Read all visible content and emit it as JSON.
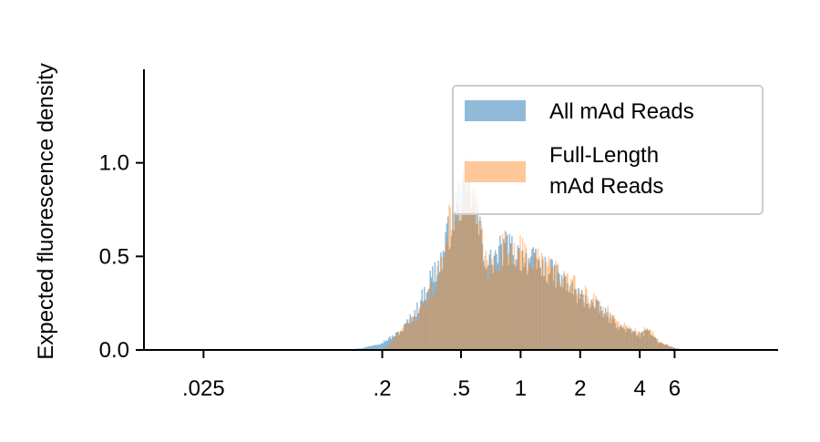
{
  "chart_data": {
    "type": "histogram",
    "title": "",
    "xlabel": "",
    "ylabel": "Expected fluorescence density",
    "x_scale": "log",
    "xlim": [
      0.0125,
      20
    ],
    "ylim": [
      0,
      1.5
    ],
    "x_ticks": [
      {
        "value": 0.025,
        "label": ".025"
      },
      {
        "value": 0.2,
        "label": ".2"
      },
      {
        "value": 0.5,
        "label": ".5"
      },
      {
        "value": 1,
        "label": "1"
      },
      {
        "value": 2,
        "label": "2"
      },
      {
        "value": 4,
        "label": "4"
      },
      {
        "value": 6,
        "label": "6"
      }
    ],
    "y_ticks": [
      {
        "value": 0.0,
        "label": "0.0"
      },
      {
        "value": 0.5,
        "label": "0.5"
      },
      {
        "value": 1.0,
        "label": "1.0"
      }
    ],
    "grid": false,
    "legend_position": "top-right",
    "series": [
      {
        "name": "All mAd Reads",
        "color": "#1f77b4",
        "opacity": 0.5,
        "profile": [
          [
            0.13,
            0.0
          ],
          [
            0.16,
            0.01
          ],
          [
            0.2,
            0.04
          ],
          [
            0.25,
            0.1
          ],
          [
            0.3,
            0.22
          ],
          [
            0.35,
            0.38
          ],
          [
            0.4,
            0.48
          ],
          [
            0.45,
            0.7
          ],
          [
            0.5,
            0.82
          ],
          [
            0.55,
            0.88
          ],
          [
            0.6,
            0.7
          ],
          [
            0.68,
            0.45
          ],
          [
            0.75,
            0.5
          ],
          [
            0.85,
            0.55
          ],
          [
            1.0,
            0.5
          ],
          [
            1.2,
            0.46
          ],
          [
            1.5,
            0.4
          ],
          [
            1.9,
            0.3
          ],
          [
            2.5,
            0.22
          ],
          [
            3.2,
            0.12
          ],
          [
            4.0,
            0.08
          ],
          [
            4.5,
            0.1
          ],
          [
            5.0,
            0.04
          ],
          [
            6.0,
            0.01
          ],
          [
            7.0,
            0.0
          ]
        ]
      },
      {
        "name": "Full-Length mAd Reads",
        "color": "#ff7f0e",
        "opacity": 0.4,
        "profile": [
          [
            0.2,
            0.0
          ],
          [
            0.22,
            0.03
          ],
          [
            0.25,
            0.12
          ],
          [
            0.3,
            0.18
          ],
          [
            0.35,
            0.3
          ],
          [
            0.4,
            0.45
          ],
          [
            0.45,
            0.75
          ],
          [
            0.5,
            0.86
          ],
          [
            0.55,
            0.9
          ],
          [
            0.6,
            0.72
          ],
          [
            0.68,
            0.42
          ],
          [
            0.75,
            0.48
          ],
          [
            0.85,
            0.56
          ],
          [
            1.0,
            0.52
          ],
          [
            1.2,
            0.48
          ],
          [
            1.5,
            0.42
          ],
          [
            1.9,
            0.33
          ],
          [
            2.5,
            0.24
          ],
          [
            3.2,
            0.14
          ],
          [
            4.0,
            0.09
          ],
          [
            4.5,
            0.12
          ],
          [
            5.0,
            0.05
          ],
          [
            6.0,
            0.01
          ],
          [
            6.5,
            0.0
          ]
        ]
      }
    ]
  },
  "legend": {
    "items": [
      {
        "label_lines": [
          "All mAd Reads"
        ],
        "color": "#8fbbd9"
      },
      {
        "label_lines": [
          "Full-Length",
          "mAd Reads"
        ],
        "color": "#ffc89b"
      }
    ]
  }
}
